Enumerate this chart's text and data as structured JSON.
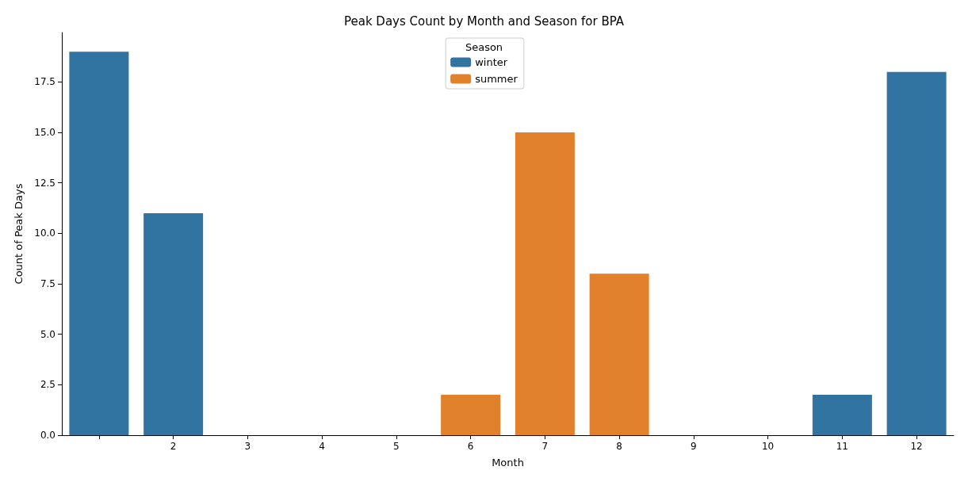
{
  "chart_data": {
    "type": "bar",
    "title": "Peak Days Count by Month and Season for BPA",
    "xlabel": "Month",
    "ylabel": "Count of Peak Days",
    "legend_title": "Season",
    "legend": "top",
    "categories": [
      null,
      "2",
      "3",
      "4",
      "5",
      "6",
      "7",
      "8",
      "9",
      "10",
      "11",
      "12"
    ],
    "series": [
      {
        "name": "winter",
        "color": "#3274a1",
        "values": [
          19,
          11,
          null,
          null,
          null,
          null,
          null,
          null,
          null,
          null,
          2,
          18
        ]
      },
      {
        "name": "summer",
        "color": "#e1812c",
        "values": [
          null,
          null,
          null,
          null,
          null,
          2,
          15,
          8,
          null,
          null,
          null,
          null
        ]
      }
    ],
    "ylim": [
      0,
      19.95
    ],
    "yticks": [
      {
        "value": 0,
        "label": "0.0"
      },
      {
        "value": 2.5,
        "label": "2.5"
      },
      {
        "value": 5,
        "label": "5.0"
      },
      {
        "value": 7.5,
        "label": "7.5"
      },
      {
        "value": 10,
        "label": "10.0"
      },
      {
        "value": 12.5,
        "label": "12.5"
      },
      {
        "value": 15,
        "label": "15.0"
      },
      {
        "value": 17.5,
        "label": "17.5"
      }
    ],
    "grid": false
  }
}
